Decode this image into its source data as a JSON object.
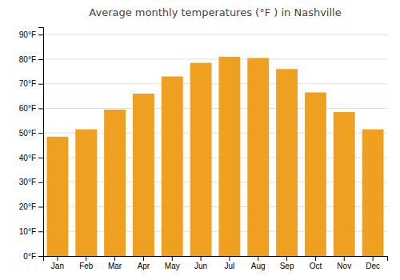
{
  "chart_data": {
    "type": "bar",
    "title": "Average monthly temperatures (°F ) in Nashville",
    "categories": [
      "Jan",
      "Feb",
      "Mar",
      "Apr",
      "May",
      "Jun",
      "Jul",
      "Aug",
      "Sep",
      "Oct",
      "Nov",
      "Dec"
    ],
    "values": [
      48.5,
      51.5,
      59.5,
      66,
      73,
      78.5,
      81,
      80.5,
      76,
      66.5,
      58.5,
      51.5
    ],
    "color": "#F0A020",
    "ylim": [
      0,
      93
    ],
    "yticks": [
      {
        "value": 0,
        "label": "0°F"
      },
      {
        "value": 10,
        "label": "10°F"
      },
      {
        "value": 20,
        "label": "20°F"
      },
      {
        "value": 30,
        "label": "30°F"
      },
      {
        "value": 40,
        "label": "40°F"
      },
      {
        "value": 50,
        "label": "50°F"
      },
      {
        "value": 60,
        "label": "60°F"
      },
      {
        "value": 70,
        "label": "70°F"
      },
      {
        "value": 80,
        "label": "80°F"
      },
      {
        "value": 90,
        "label": "90°F"
      }
    ],
    "grid": true
  }
}
